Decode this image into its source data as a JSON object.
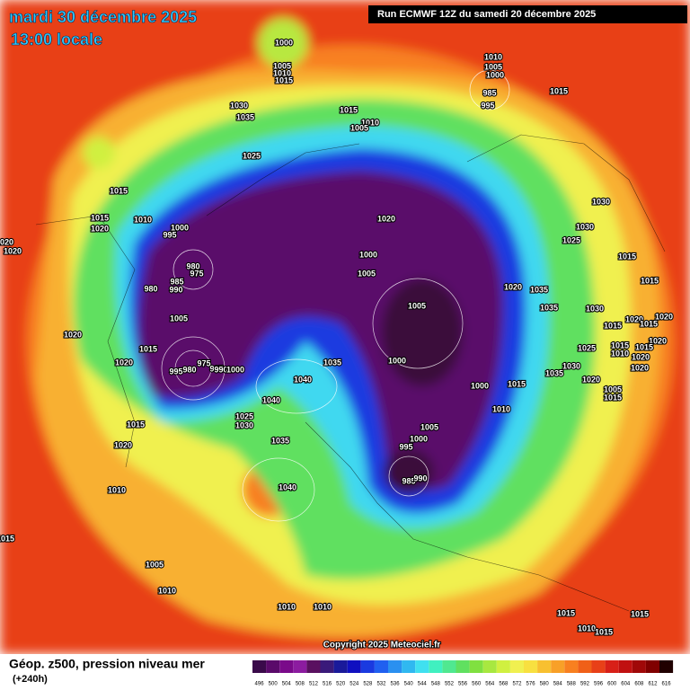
{
  "header": {
    "date": "mardi 30 décembre 2025",
    "time": "13:00 locale",
    "run": "Run ECMWF 12Z du samedi 20 décembre 2025"
  },
  "copyright": "Copyright 2025 Meteociel.fr",
  "footer": {
    "title": "Géop. z500, pression niveau mer",
    "lead": "(+240h)"
  },
  "legend": {
    "labels": [
      496,
      500,
      504,
      508,
      512,
      516,
      520,
      524,
      528,
      532,
      536,
      540,
      544,
      548,
      552,
      556,
      560,
      564,
      568,
      572,
      576,
      580,
      584,
      588,
      592,
      596,
      600,
      604,
      608,
      612,
      616
    ],
    "colors": [
      "#3a0a4a",
      "#5a0a6a",
      "#7a0a8a",
      "#8c1ca0",
      "#5a1060",
      "#3a1a7a",
      "#1a1a9a",
      "#1010c0",
      "#1a3ae0",
      "#2060f0",
      "#2a90f0",
      "#30b8f0",
      "#40e0f0",
      "#40f0c0",
      "#50e890",
      "#60e060",
      "#80e040",
      "#a8e840",
      "#d0f040",
      "#f0f050",
      "#f8e040",
      "#f8c030",
      "#f8a028",
      "#f88020",
      "#f06018",
      "#e84018",
      "#d82018",
      "#c01010",
      "#a00808",
      "#800000",
      "#200000"
    ]
  },
  "isobar_labels": [
    "1000",
    "1005",
    "1010",
    "1015",
    "1030",
    "1035",
    "1015",
    "1010",
    "1005",
    "1010",
    "1005",
    "1000",
    "985",
    "995",
    "1015",
    "1025",
    "1015",
    "1010",
    "1015",
    "1020",
    "1000",
    "995",
    "1020",
    "1000",
    "1005",
    "980",
    "975",
    "985",
    "990",
    "980",
    "1005",
    "1020",
    "1020",
    "1030",
    "1030",
    "1025",
    "1015",
    "1015",
    "1020",
    "1035",
    "1035",
    "1030",
    "1005",
    "1015",
    "1020",
    "1020",
    "1015",
    "1020",
    "1025",
    "1015",
    "1010",
    "1015",
    "1020",
    "1020",
    "1030",
    "1035",
    "1020",
    "1005",
    "1015",
    "1020",
    "1015",
    "1020",
    "1000",
    "1035",
    "1040",
    "1040",
    "1000",
    "1015",
    "1010",
    "995",
    "980",
    "975",
    "995",
    "990",
    "1000",
    "1015",
    "1025",
    "1030",
    "1035",
    "1005",
    "1000",
    "995",
    "985",
    "990",
    "1020",
    "1010",
    "1040",
    "1015",
    "1005",
    "1010",
    "1010",
    "1010",
    "1015",
    "1015",
    "1010",
    "1015"
  ]
}
